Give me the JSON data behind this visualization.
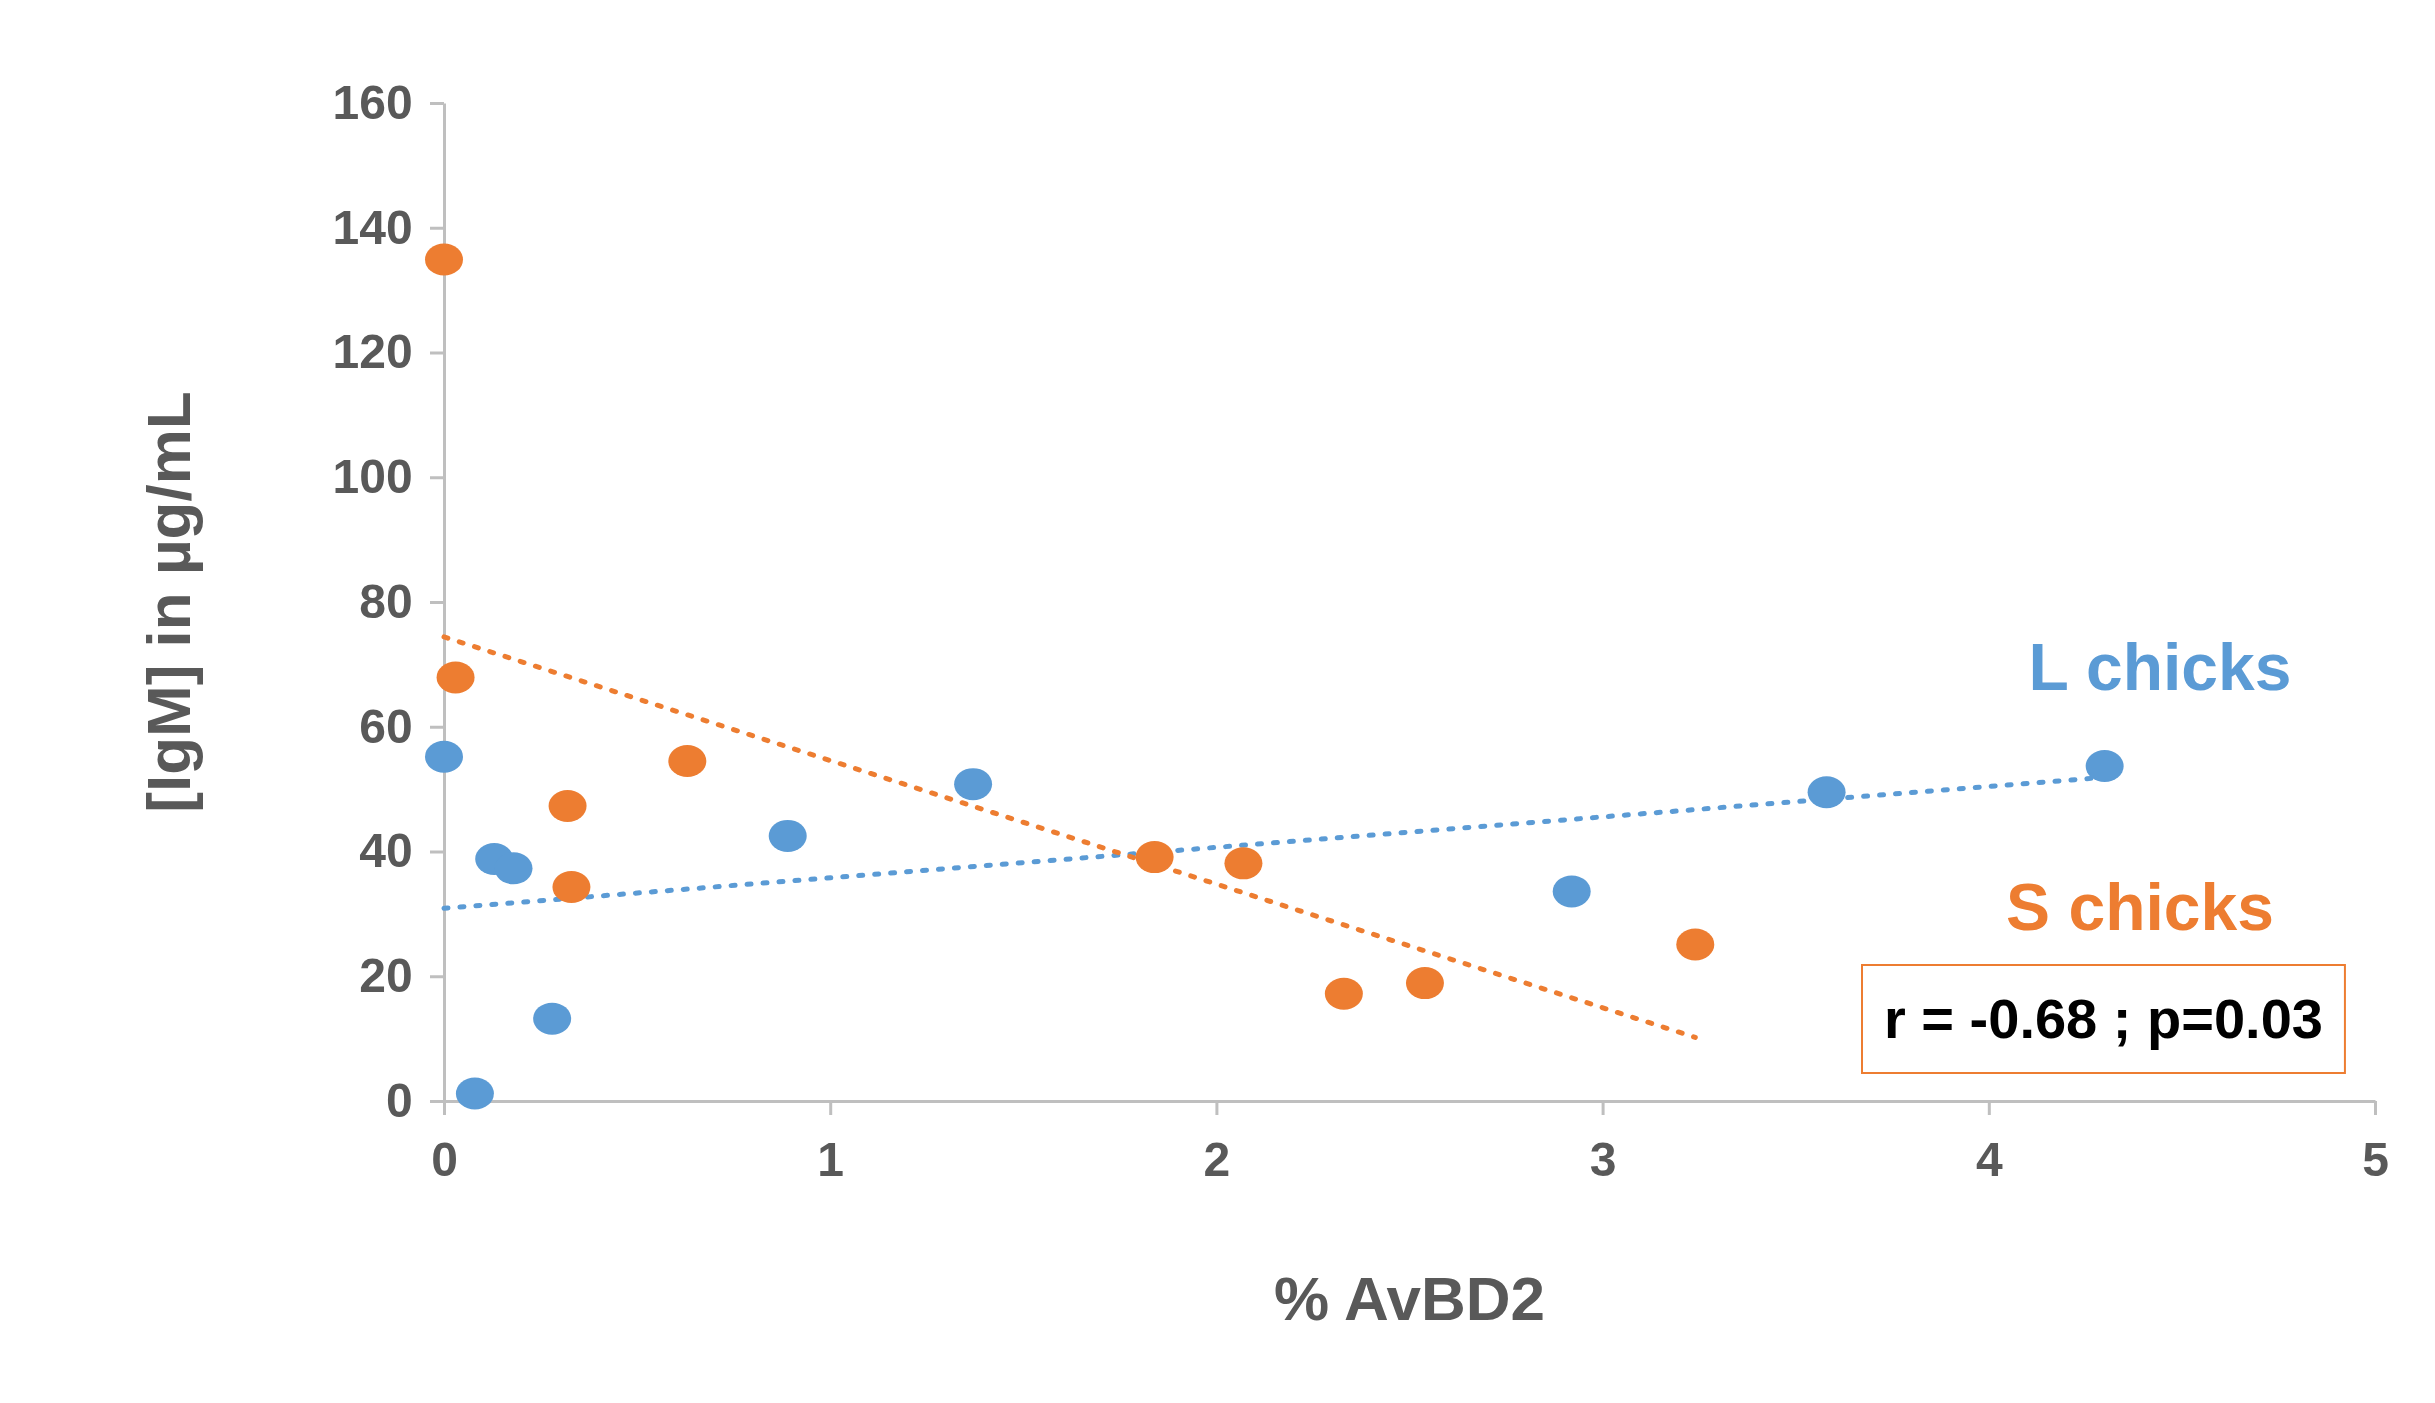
{
  "chart_data": {
    "type": "scatter",
    "xlabel": "% AvBD2",
    "ylabel": "[IgM] in µg/mL",
    "xlim": [
      0,
      5
    ],
    "xticks": [
      0,
      1,
      2,
      3,
      4,
      5
    ],
    "ylim": [
      0,
      160
    ],
    "yticks": [
      0,
      20,
      40,
      60,
      80,
      100,
      120,
      140,
      160
    ],
    "grid": false,
    "marker": "circle",
    "series": [
      {
        "name": "L chicks",
        "color": "#5b9bd5",
        "x": [
          0,
          0.08,
          0.13,
          0.18,
          0.28,
          0.89,
          1.37,
          2.92,
          3.58,
          4.3
        ],
        "values": [
          55.2,
          1.2,
          38.8,
          37.3,
          13.2,
          42.5,
          50.8,
          33.6,
          49.5,
          53.7
        ]
      },
      {
        "name": "S chicks",
        "color": "#ed7d31",
        "x": [
          0,
          0.03,
          0.32,
          0.33,
          0.63,
          1.84,
          2.07,
          2.33,
          2.54,
          3.24
        ],
        "values": [
          134.9,
          67.9,
          47.3,
          34.3,
          54.5,
          39.1,
          38.1,
          17.2,
          18.9,
          25.1
        ]
      },
      {
        "type": "line",
        "line_style": "dotted",
        "marker": "none",
        "color": "#5b9bd5",
        "x": [
          0,
          4.28
        ],
        "values": [
          30.9,
          51.8
        ]
      },
      {
        "type": "line",
        "line_style": "dotted",
        "marker": "none",
        "color": "#ed7d31",
        "x": [
          0,
          3.24
        ],
        "values": [
          74.4,
          10.2
        ]
      }
    ],
    "annotations": [
      "r = -0.68 ; p=0.03"
    ]
  }
}
